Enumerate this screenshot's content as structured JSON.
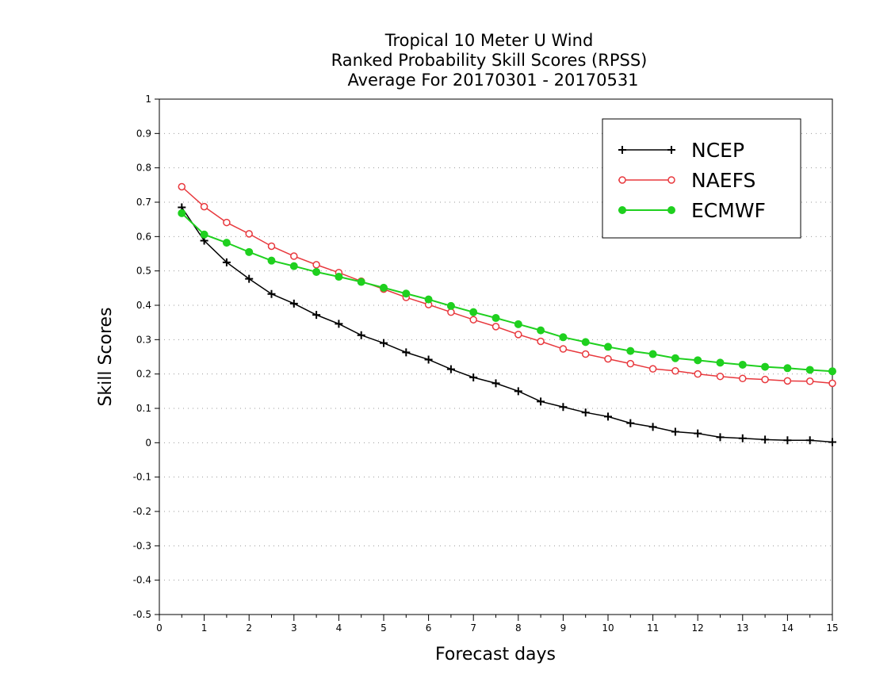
{
  "chart_data": {
    "type": "line",
    "title": [
      "Tropical 10 Meter U Wind",
      "Ranked Probability Skill Scores (RPSS)",
      "Average For 20170301 - 20170531"
    ],
    "xlabel": "Forecast days",
    "ylabel": "Skill Scores",
    "xlim": [
      0,
      15
    ],
    "ylim": [
      -0.5,
      1
    ],
    "xticks": [
      0,
      1,
      2,
      3,
      4,
      5,
      6,
      7,
      8,
      9,
      10,
      11,
      12,
      13,
      14,
      15
    ],
    "yticks": [
      -0.5,
      -0.4,
      -0.3,
      -0.2,
      -0.1,
      0,
      0.1,
      0.2,
      0.3,
      0.4,
      0.5,
      0.6,
      0.7,
      0.8,
      0.9,
      1
    ],
    "ytick_labels": [
      "-0.5",
      "-0.4",
      "-0.3",
      "-0.2",
      "-0.1",
      "0",
      "0.1",
      "0.2",
      "0.3",
      "0.4",
      "0.5",
      "0.6",
      "0.7",
      "0.8",
      "0.9",
      "1"
    ],
    "grid": "horizontal dotted",
    "legend_position": "top-right",
    "x": [
      0.5,
      1,
      1.5,
      2,
      2.5,
      3,
      3.5,
      4,
      4.5,
      5,
      5.5,
      6,
      6.5,
      7,
      7.5,
      8,
      8.5,
      9,
      9.5,
      10,
      10.5,
      11,
      11.5,
      12,
      12.5,
      13,
      13.5,
      14,
      14.5,
      15
    ],
    "series": [
      {
        "name": "NCEP",
        "color": "#000000",
        "marker": "plus",
        "values": [
          0.685,
          0.588,
          0.525,
          0.477,
          0.433,
          0.405,
          0.372,
          0.346,
          0.313,
          0.29,
          0.263,
          0.242,
          0.214,
          0.19,
          0.173,
          0.15,
          0.12,
          0.104,
          0.088,
          0.076,
          0.057,
          0.046,
          0.032,
          0.027,
          0.016,
          0.013,
          0.009,
          0.007,
          0.007,
          0.002
        ]
      },
      {
        "name": "NAEFS",
        "color": "#e8383d",
        "marker": "open-circle",
        "values": [
          0.745,
          0.687,
          0.641,
          0.608,
          0.572,
          0.543,
          0.518,
          0.495,
          0.47,
          0.447,
          0.423,
          0.402,
          0.38,
          0.358,
          0.338,
          0.315,
          0.295,
          0.273,
          0.258,
          0.244,
          0.23,
          0.215,
          0.209,
          0.2,
          0.193,
          0.187,
          0.184,
          0.18,
          0.179,
          0.173
        ]
      },
      {
        "name": "ECMWF",
        "color": "#1fd01f",
        "marker": "filled-circle",
        "values": [
          0.668,
          0.606,
          0.582,
          0.555,
          0.53,
          0.514,
          0.497,
          0.483,
          0.468,
          0.451,
          0.434,
          0.417,
          0.398,
          0.38,
          0.363,
          0.345,
          0.327,
          0.307,
          0.293,
          0.279,
          0.267,
          0.258,
          0.246,
          0.24,
          0.233,
          0.227,
          0.221,
          0.217,
          0.212,
          0.208
        ]
      }
    ]
  }
}
